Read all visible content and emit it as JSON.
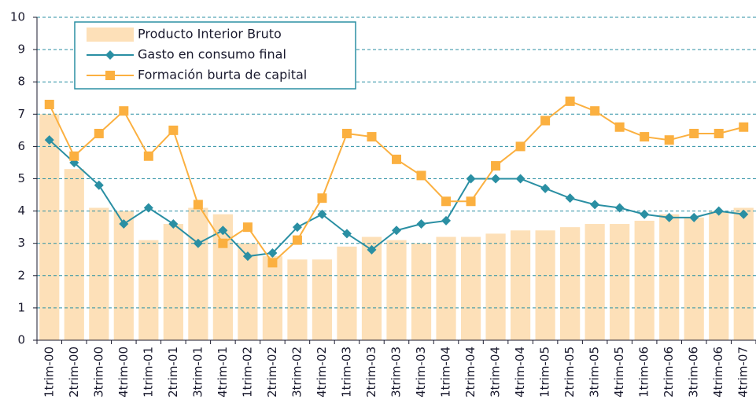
{
  "chart_data": {
    "type": "combo",
    "categories": [
      "1trim-00",
      "2trim-00",
      "3trim-00",
      "4trim-00",
      "1trim-01",
      "2trim-01",
      "3trim-01",
      "4trim-01",
      "1trim-02",
      "2trim-02",
      "3trim-02",
      "4trim-02",
      "1trim-03",
      "2trim-03",
      "3trim-03",
      "4trim-03",
      "1trim-04",
      "2trim-04",
      "3trim-04",
      "4trim-04",
      "1trim-05",
      "2trim-05",
      "3trim-05",
      "4trim-05",
      "1trim-06",
      "2trim-06",
      "3trim-06",
      "4trim-06",
      "4trim-07"
    ],
    "series": [
      {
        "name": "Producto Interior Bruto",
        "type": "bar",
        "color": "#fde0b8",
        "values": [
          7.0,
          5.3,
          4.1,
          4.0,
          3.1,
          3.6,
          4.1,
          3.9,
          3.0,
          2.6,
          2.5,
          2.5,
          2.9,
          3.2,
          3.1,
          3.0,
          3.2,
          3.2,
          3.3,
          3.4,
          3.4,
          3.5,
          3.6,
          3.6,
          3.7,
          3.9,
          3.8,
          4.0,
          4.1
        ]
      },
      {
        "name": "Gasto en consumo final",
        "type": "line",
        "marker": "diamond",
        "color": "#2a8fa3",
        "values": [
          6.2,
          5.5,
          4.8,
          3.6,
          4.1,
          3.6,
          3.0,
          3.4,
          2.6,
          2.7,
          3.5,
          3.9,
          3.3,
          2.8,
          3.4,
          3.6,
          3.7,
          5.0,
          5.0,
          5.0,
          4.7,
          4.4,
          4.2,
          4.1,
          3.9,
          3.8,
          3.8,
          4.0,
          3.9
        ]
      },
      {
        "name": "Formación burta de capital",
        "type": "line",
        "marker": "square",
        "color": "#fbb040",
        "values": [
          7.3,
          5.7,
          6.4,
          7.1,
          5.7,
          6.5,
          4.2,
          3.0,
          3.5,
          2.4,
          3.1,
          4.4,
          6.4,
          6.3,
          5.6,
          5.1,
          4.3,
          4.3,
          5.4,
          6.0,
          6.8,
          7.4,
          7.1,
          6.6,
          6.3,
          6.2,
          6.4,
          6.4,
          6.6
        ]
      }
    ],
    "ylim": [
      0,
      10
    ],
    "yticks": [
      0,
      1,
      2,
      3,
      4,
      5,
      6,
      7,
      8,
      9,
      10
    ],
    "grid": true,
    "legend": "top-left"
  }
}
